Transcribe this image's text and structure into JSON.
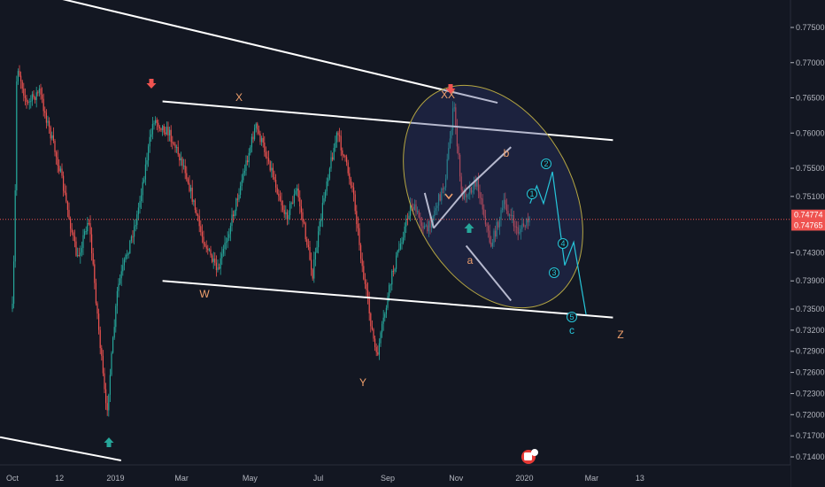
{
  "chart_data": {
    "type": "candlestick",
    "title": "",
    "price_axis": {
      "ylim": [
        0.7125,
        0.779
      ],
      "ticks": [
        "0.77500",
        "0.77000",
        "0.76500",
        "0.76000",
        "0.75500",
        "0.75100",
        "0.74300",
        "0.73900",
        "0.73500",
        "0.73200",
        "0.72900",
        "0.72600",
        "0.72300",
        "0.72000",
        "0.71700",
        "0.71400"
      ],
      "current_price": "0.74774",
      "secondary_price": "0.74765",
      "current_price_value": 0.74774,
      "secondary_price_value": 0.74765
    },
    "time_axis": {
      "ticks": [
        "Oct",
        "12",
        "2019",
        "Mar",
        "May",
        "Jul",
        "Sep",
        "Nov",
        "2020",
        "Mar",
        "13"
      ]
    },
    "wave_labels": [
      {
        "text": "X",
        "color": "#f0a06c"
      },
      {
        "text": "XX",
        "color": "#f0a06c"
      },
      {
        "text": "W",
        "color": "#f0a06c"
      },
      {
        "text": "Y",
        "color": "#f0a06c"
      },
      {
        "text": "b",
        "color": "#f0a06c"
      },
      {
        "text": "a",
        "color": "#f0a06c"
      },
      {
        "text": "c",
        "color": "#26c6da"
      },
      {
        "text": "Z",
        "color": "#f0a06c"
      }
    ],
    "projection_labels": [
      "1",
      "2",
      "3",
      "4",
      "5"
    ],
    "price_path": [
      {
        "t": "2018-10-01",
        "p": 0.735
      },
      {
        "t": "2018-10-03",
        "p": 0.745
      },
      {
        "t": "2018-10-05",
        "p": 0.77
      },
      {
        "t": "2018-10-14",
        "p": 0.764
      },
      {
        "t": "2018-10-25",
        "p": 0.766
      },
      {
        "t": "2018-11-12",
        "p": 0.755
      },
      {
        "t": "2018-11-28",
        "p": 0.742
      },
      {
        "t": "2018-12-08",
        "p": 0.748
      },
      {
        "t": "2018-12-24",
        "p": 0.72
      },
      {
        "t": "2019-01-03",
        "p": 0.738
      },
      {
        "t": "2019-01-20",
        "p": 0.748
      },
      {
        "t": "2019-02-04",
        "p": 0.762
      },
      {
        "t": "2019-02-18",
        "p": 0.76
      },
      {
        "t": "2019-03-04",
        "p": 0.755
      },
      {
        "t": "2019-03-18",
        "p": 0.746
      },
      {
        "t": "2019-04-02",
        "p": 0.74
      },
      {
        "t": "2019-04-20",
        "p": 0.751
      },
      {
        "t": "2019-05-06",
        "p": 0.761
      },
      {
        "t": "2019-05-18",
        "p": 0.756
      },
      {
        "t": "2019-06-02",
        "p": 0.748
      },
      {
        "t": "2019-06-12",
        "p": 0.752
      },
      {
        "t": "2019-06-26",
        "p": 0.74
      },
      {
        "t": "2019-07-08",
        "p": 0.753
      },
      {
        "t": "2019-07-18",
        "p": 0.76
      },
      {
        "t": "2019-08-01",
        "p": 0.752
      },
      {
        "t": "2019-08-10",
        "p": 0.74
      },
      {
        "t": "2019-08-22",
        "p": 0.728
      },
      {
        "t": "2019-09-05",
        "p": 0.74
      },
      {
        "t": "2019-09-22",
        "p": 0.75
      },
      {
        "t": "2019-10-06",
        "p": 0.746
      },
      {
        "t": "2019-10-22",
        "p": 0.753
      },
      {
        "t": "2019-10-30",
        "p": 0.764
      },
      {
        "t": "2019-11-06",
        "p": 0.751
      },
      {
        "t": "2019-11-20",
        "p": 0.753
      },
      {
        "t": "2019-12-02",
        "p": 0.744
      },
      {
        "t": "2019-12-14",
        "p": 0.75
      },
      {
        "t": "2019-12-26",
        "p": 0.746
      },
      {
        "t": "2020-01-06",
        "p": 0.7477
      }
    ],
    "trend_lines": [
      {
        "from": {
          "t": "2018-10-20",
          "p": 0.78
        },
        "to": {
          "t": "2019-12-08",
          "p": 0.7643
        }
      },
      {
        "from": {
          "t": "2019-02-12",
          "p": 0.7645
        },
        "to": {
          "t": "2020-03-20",
          "p": 0.759
        }
      },
      {
        "from": {
          "t": "2019-02-12",
          "p": 0.739
        },
        "to": {
          "t": "2020-03-20",
          "p": 0.7338
        }
      },
      {
        "from": {
          "t": "2018-09-20",
          "p": 0.7168
        },
        "to": {
          "t": "2019-01-06",
          "p": 0.7135
        }
      },
      {
        "from": {
          "t": "2019-10-04",
          "p": 0.7515
        },
        "to": {
          "t": "2019-10-12",
          "p": 0.7465
        }
      },
      {
        "from": {
          "t": "2019-10-12",
          "p": 0.7465
        },
        "to": {
          "t": "2019-11-10",
          "p": 0.752
        }
      },
      {
        "from": {
          "t": "2019-11-10",
          "p": 0.752
        },
        "to": {
          "t": "2019-12-20",
          "p": 0.758
        }
      },
      {
        "from": {
          "t": "2019-11-10",
          "p": 0.744
        },
        "to": {
          "t": "2019-12-20",
          "p": 0.7362
        }
      }
    ],
    "projection_path": [
      {
        "t": "2020-01-06",
        "p": 0.75
      },
      {
        "t": "2020-01-12",
        "p": 0.7525
      },
      {
        "t": "2020-01-18",
        "p": 0.75
      },
      {
        "t": "2020-01-26",
        "p": 0.7545
      },
      {
        "t": "2020-02-06",
        "p": 0.7412
      },
      {
        "t": "2020-02-14",
        "p": 0.7445
      },
      {
        "t": "2020-02-25",
        "p": 0.7342
      }
    ],
    "colors": {
      "background": "#131722",
      "up_candle": "#26a69a",
      "down_candle": "#ef5350",
      "trend_line": "#ffffff",
      "projection": "#26c6da",
      "ellipse_stroke": "#b5a642",
      "price_line": "#ef5350",
      "wave_label": "#f0a06c",
      "arrow_down": "#ef5350",
      "arrow_up": "#26a69a"
    },
    "grid": false
  }
}
